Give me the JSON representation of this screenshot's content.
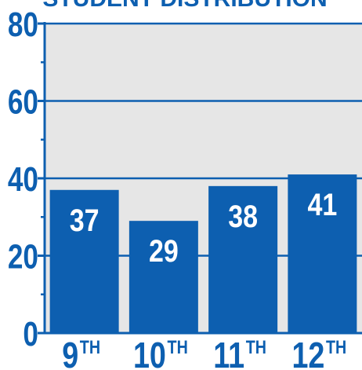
{
  "chart_data": {
    "type": "bar",
    "title": "STUDENT DISTRIBUTION",
    "categories": [
      {
        "num": "9",
        "sup": "TH"
      },
      {
        "num": "10",
        "sup": "TH"
      },
      {
        "num": "11",
        "sup": "TH"
      },
      {
        "num": "12",
        "sup": "TH"
      }
    ],
    "values": [
      37,
      29,
      38,
      41
    ],
    "ylim": [
      0,
      80
    ],
    "yticks": [
      0,
      20,
      40,
      60,
      80
    ],
    "y_minor_step": 10,
    "grid": true,
    "colors": {
      "accent": "#0d5fb0",
      "plot_bg": "#e6e6e6",
      "bar": "#0d5fb0",
      "bar_label": "#ffffff"
    }
  }
}
